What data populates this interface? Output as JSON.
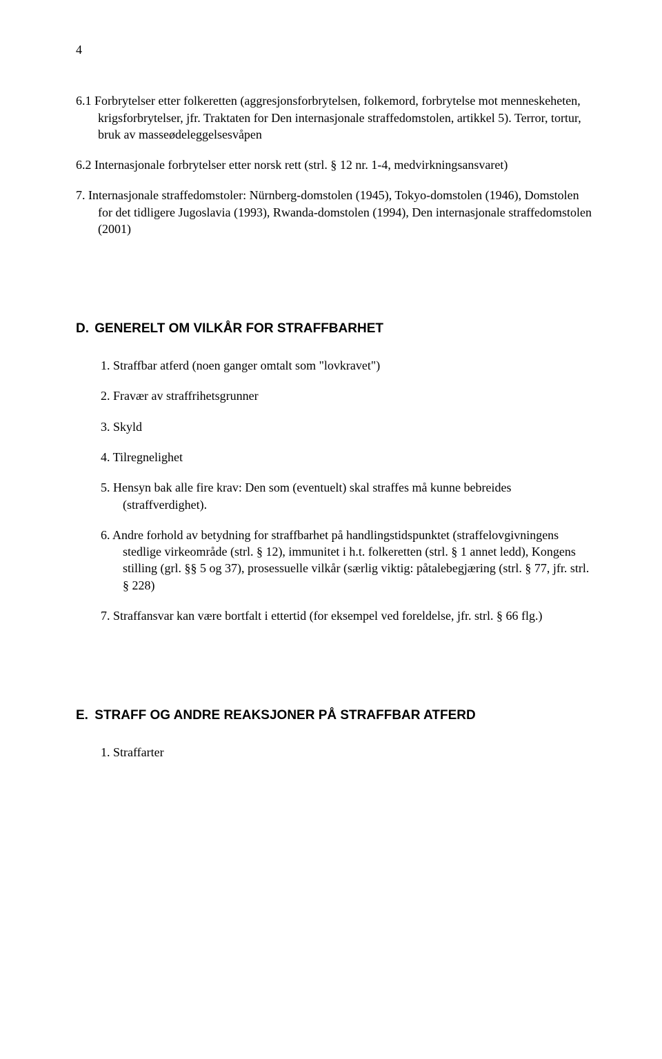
{
  "page_number": "4",
  "section_6_1": "6.1 Forbrytelser etter folkeretten (aggresjonsforbrytelsen, folkemord, forbrytelse mot menneskeheten, krigsforbrytelser, jfr. Traktaten for Den internasjonale straffedomstolen, artikkel 5). Terror, tortur, bruk av masseødeleggelsesvåpen",
  "section_6_2": "6.2 Internasjonale forbrytelser etter norsk rett (strl. § 12 nr. 1-4, medvirkningsansvaret)",
  "section_7": "7. Internasjonale straffedomstoler: Nürnberg-domstolen (1945), Tokyo-domstolen  (1946), Domstolen for det tidligere Jugoslavia (1993), Rwanda-domstolen (1994), Den internasjonale straffedomstolen (2001)",
  "heading_d": {
    "letter": "D.",
    "title": "GENERELT OM VILKÅR FOR STRAFFBARHET"
  },
  "d_items": {
    "i1": "1. Straffbar atferd (noen ganger omtalt som \"lovkravet\")",
    "i2": "2. Fravær av straffrihetsgrunner",
    "i3": "3. Skyld",
    "i4": "4. Tilregnelighet",
    "i5": "5. Hensyn bak alle fire krav: Den som (eventuelt) skal straffes må kunne bebreides (straffverdighet).",
    "i6": "6. Andre forhold av betydning for straffbarhet på handlingstidspunktet (straffelovgivningens stedlige virkeområde (strl. § 12), immunitet i h.t. folkeretten (strl. § 1 annet ledd), Kongens stilling (grl. §§ 5 og 37), prosessuelle vilkår (særlig viktig: påtalebegjæring (strl. § 77, jfr. strl. § 228)",
    "i7": "7. Straffansvar kan være bortfalt i ettertid (for eksempel ved foreldelse, jfr. strl. § 66 flg.)"
  },
  "heading_e": {
    "letter": "E.",
    "title": "STRAFF OG ANDRE REAKSJONER PÅ STRAFFBAR ATFERD"
  },
  "e_items": {
    "i1": "1. Straffarter"
  }
}
